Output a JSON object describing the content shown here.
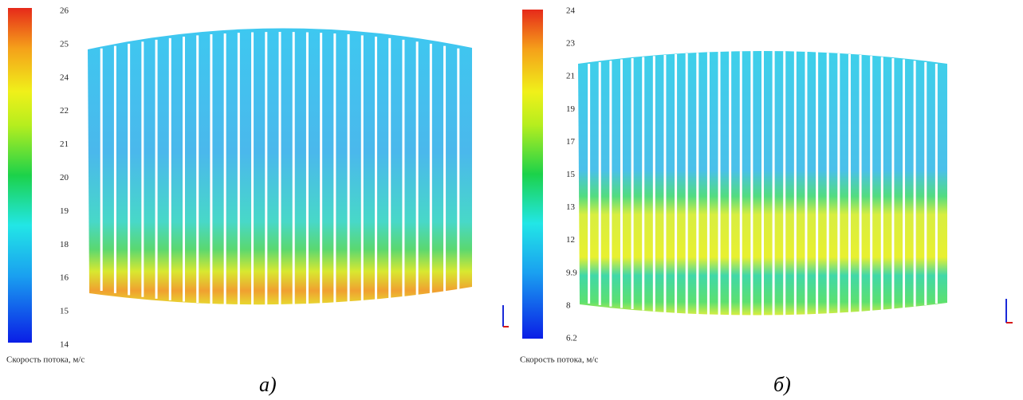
{
  "panels": [
    {
      "ticks": [
        26,
        25,
        24,
        22,
        21,
        20,
        19,
        18,
        16,
        15,
        14
      ],
      "label": "Скорость потока, м/с",
      "caption": "а)"
    },
    {
      "ticks": [
        24,
        23,
        21,
        19,
        17,
        15,
        13,
        12,
        9.9,
        8,
        6.2
      ],
      "label": "Скорость потока, м/с",
      "caption": "б)"
    }
  ]
}
